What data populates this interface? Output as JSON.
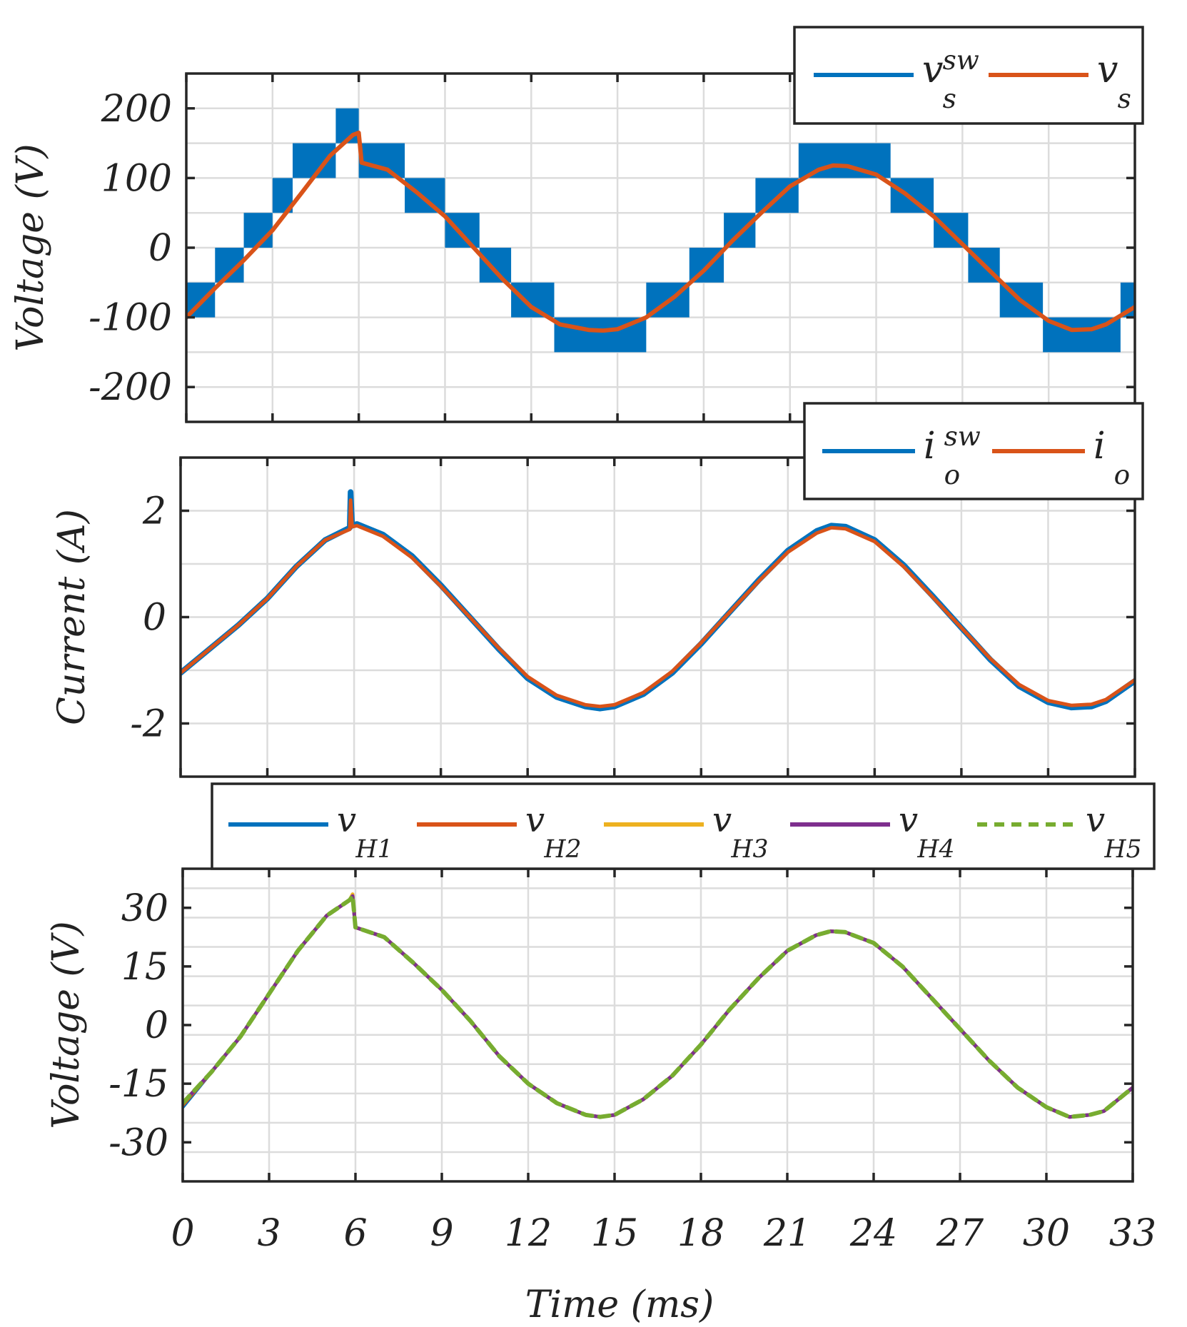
{
  "colors": {
    "blue": "#0072BD",
    "orange": "#D95319",
    "yellow": "#EDB120",
    "purple": "#7E2F8E",
    "green": "#77AC30",
    "grid": "#dcdcdc",
    "frame": "#262626"
  },
  "x_axis": {
    "title": "Time (ms)",
    "ticks": [
      "0",
      "3",
      "6",
      "9",
      "12",
      "15",
      "18",
      "21",
      "24",
      "27",
      "30",
      "33"
    ]
  },
  "chart_data": [
    {
      "type": "line",
      "panel": "top",
      "ylabel": "Voltage (V)",
      "xlabel": "",
      "xlim": [
        0,
        33
      ],
      "ylim": [
        -250,
        250
      ],
      "yticks": [
        "200",
        "100",
        "0",
        "-100",
        "-200"
      ],
      "grid": true,
      "legend_placement": "top-right",
      "series": [
        {
          "name": "v_s^sw",
          "legend_base": "v",
          "legend_sup": "sw",
          "legend_sub": "s",
          "style": "switching staircase band (PWM)",
          "levels": [
            {
              "t0": 0.0,
              "t1": 1.0,
              "lo": -100,
              "hi": -50
            },
            {
              "t0": 1.0,
              "t1": 2.0,
              "lo": -50,
              "hi": 0
            },
            {
              "t0": 2.0,
              "t1": 3.0,
              "lo": 0,
              "hi": 50
            },
            {
              "t0": 3.0,
              "t1": 3.7,
              "lo": 50,
              "hi": 100
            },
            {
              "t0": 3.7,
              "t1": 5.2,
              "lo": 100,
              "hi": 150
            },
            {
              "t0": 5.2,
              "t1": 6.0,
              "lo": 150,
              "hi": 200
            },
            {
              "t0": 6.0,
              "t1": 7.6,
              "lo": 100,
              "hi": 150
            },
            {
              "t0": 7.6,
              "t1": 9.0,
              "lo": 50,
              "hi": 100
            },
            {
              "t0": 9.0,
              "t1": 10.2,
              "lo": 0,
              "hi": 50
            },
            {
              "t0": 10.2,
              "t1": 11.3,
              "lo": -50,
              "hi": 0
            },
            {
              "t0": 11.3,
              "t1": 12.8,
              "lo": -100,
              "hi": -50
            },
            {
              "t0": 12.8,
              "t1": 16.0,
              "lo": -150,
              "hi": -100
            },
            {
              "t0": 16.0,
              "t1": 17.5,
              "lo": -100,
              "hi": -50
            },
            {
              "t0": 17.5,
              "t1": 18.7,
              "lo": -50,
              "hi": 0
            },
            {
              "t0": 18.7,
              "t1": 19.8,
              "lo": 0,
              "hi": 50
            },
            {
              "t0": 19.8,
              "t1": 21.3,
              "lo": 50,
              "hi": 100
            },
            {
              "t0": 21.3,
              "t1": 24.5,
              "lo": 100,
              "hi": 150
            },
            {
              "t0": 24.5,
              "t1": 26.0,
              "lo": 50,
              "hi": 100
            },
            {
              "t0": 26.0,
              "t1": 27.2,
              "lo": 0,
              "hi": 50
            },
            {
              "t0": 27.2,
              "t1": 28.3,
              "lo": -50,
              "hi": 0
            },
            {
              "t0": 28.3,
              "t1": 29.8,
              "lo": -100,
              "hi": -50
            },
            {
              "t0": 29.8,
              "t1": 32.5,
              "lo": -150,
              "hi": -100
            },
            {
              "t0": 32.5,
              "t1": 33.0,
              "lo": -100,
              "hi": -50
            }
          ]
        },
        {
          "name": "v_s",
          "legend_base": "v",
          "legend_sup": "",
          "legend_sub": "s",
          "x": [
            0,
            1,
            2,
            3,
            4,
            5,
            5.8,
            6.0,
            6.1,
            7,
            8,
            9,
            10,
            11,
            12,
            13,
            14,
            14.5,
            15,
            16,
            17,
            18,
            19,
            20,
            21,
            22,
            22.5,
            23,
            24,
            25,
            26,
            27,
            28,
            29,
            30,
            30.8,
            31.5,
            32,
            33
          ],
          "y": [
            -100,
            -58,
            -18,
            25,
            78,
            132,
            162,
            165,
            122,
            112,
            80,
            45,
            0,
            -45,
            -85,
            -110,
            -118,
            -119,
            -117,
            -100,
            -70,
            -33,
            10,
            50,
            88,
            112,
            118,
            117,
            105,
            78,
            45,
            5,
            -35,
            -75,
            -105,
            -118,
            -117,
            -110,
            -85
          ]
        }
      ]
    },
    {
      "type": "line",
      "panel": "middle",
      "ylabel": "Current (A)",
      "xlabel": "",
      "xlim": [
        0,
        33
      ],
      "ylim": [
        -3,
        3
      ],
      "yticks": [
        "2",
        "0",
        "-2"
      ],
      "grid": true,
      "legend_placement": "top-right",
      "series": [
        {
          "name": "i_o^sw",
          "legend_base": "i",
          "legend_sup": "sw",
          "legend_sub": "o",
          "x": [
            0,
            1,
            2,
            3,
            4,
            5,
            5.85,
            5.88,
            5.93,
            6.1,
            7,
            8,
            9,
            10,
            11,
            12,
            13,
            14,
            14.5,
            15,
            16,
            17,
            18,
            19,
            20,
            21,
            22,
            22.5,
            23,
            24,
            25,
            26,
            27,
            28,
            29,
            30,
            30.8,
            31.5,
            32,
            33
          ],
          "y": [
            -1.05,
            -0.6,
            -0.15,
            0.35,
            0.95,
            1.45,
            1.68,
            2.35,
            1.72,
            1.75,
            1.55,
            1.15,
            0.6,
            0.0,
            -0.6,
            -1.15,
            -1.5,
            -1.68,
            -1.72,
            -1.68,
            -1.45,
            -1.05,
            -0.5,
            0.1,
            0.7,
            1.25,
            1.62,
            1.72,
            1.7,
            1.45,
            0.98,
            0.4,
            -0.2,
            -0.8,
            -1.3,
            -1.6,
            -1.7,
            -1.68,
            -1.58,
            -1.2
          ]
        },
        {
          "name": "i_o",
          "legend_base": "i",
          "legend_sup": "",
          "legend_sub": "o",
          "x": [
            0,
            1,
            2,
            3,
            4,
            5,
            5.85,
            5.88,
            5.93,
            6.1,
            7,
            8,
            9,
            10,
            11,
            12,
            13,
            14,
            14.5,
            15,
            16,
            17,
            18,
            19,
            20,
            21,
            22,
            22.5,
            23,
            24,
            25,
            26,
            27,
            28,
            29,
            30,
            30.8,
            31.5,
            32,
            33
          ],
          "y": [
            -1.05,
            -0.6,
            -0.15,
            0.35,
            0.95,
            1.45,
            1.65,
            2.2,
            1.7,
            1.72,
            1.52,
            1.12,
            0.58,
            0.0,
            -0.58,
            -1.12,
            -1.47,
            -1.65,
            -1.68,
            -1.65,
            -1.42,
            -1.02,
            -0.48,
            0.1,
            0.68,
            1.22,
            1.58,
            1.68,
            1.66,
            1.42,
            0.95,
            0.38,
            -0.2,
            -0.78,
            -1.27,
            -1.57,
            -1.66,
            -1.64,
            -1.55,
            -1.18
          ]
        }
      ]
    },
    {
      "type": "line",
      "panel": "bottom",
      "ylabel": "Voltage (V)",
      "xlabel": "Time (ms)",
      "xlim": [
        0,
        33
      ],
      "ylim": [
        -40,
        40
      ],
      "yticks": [
        "30",
        "15",
        "0",
        "-15",
        "-30"
      ],
      "grid": true,
      "legend_placement": "top",
      "x": [
        0,
        1,
        2,
        3,
        4,
        5,
        5.8,
        5.9,
        6.0,
        7,
        8,
        9,
        10,
        11,
        12,
        13,
        14,
        14.5,
        15,
        16,
        17,
        18,
        19,
        20,
        21,
        22,
        22.5,
        23,
        24,
        25,
        26,
        27,
        28,
        29,
        30,
        30.8,
        31.5,
        32,
        33
      ],
      "series": [
        {
          "name": "v_H1",
          "legend_base": "v",
          "legend_sub": "H1",
          "dashed": false,
          "y": [
            -21,
            -12,
            -3,
            8,
            19,
            28,
            32,
            33,
            25,
            22.5,
            16,
            9,
            1,
            -8,
            -15,
            -20,
            -23,
            -23.5,
            -23,
            -19,
            -13,
            -5,
            4,
            12,
            19,
            23,
            24,
            23.8,
            21,
            15,
            7,
            -1,
            -9,
            -16,
            -21,
            -23.5,
            -23,
            -22,
            -16
          ]
        },
        {
          "name": "v_H2",
          "legend_base": "v",
          "legend_sub": "H2",
          "dashed": false,
          "y": [
            -20.5,
            -12,
            -3,
            8,
            19,
            28,
            32,
            33,
            25,
            22.5,
            16,
            9,
            1,
            -8,
            -15,
            -20,
            -23,
            -23.5,
            -23,
            -19,
            -13,
            -5,
            4,
            12,
            19,
            23,
            24,
            23.8,
            21,
            15,
            7,
            -1,
            -9,
            -16,
            -21,
            -23.5,
            -23,
            -22,
            -16
          ]
        },
        {
          "name": "v_H3",
          "legend_base": "v",
          "legend_sub": "H3",
          "dashed": false,
          "y": [
            -20,
            -12,
            -3,
            8,
            19,
            28,
            32,
            33.5,
            25,
            22.5,
            16,
            9,
            1,
            -8,
            -15,
            -20,
            -23,
            -23.5,
            -23,
            -19,
            -13,
            -5,
            4,
            12,
            19,
            23,
            24,
            23.8,
            21,
            15,
            7,
            -1,
            -9,
            -16,
            -21,
            -23.5,
            -23,
            -22,
            -16
          ]
        },
        {
          "name": "v_H4",
          "legend_base": "v",
          "legend_sub": "H4",
          "dashed": false,
          "y": [
            -20,
            -12,
            -3,
            8,
            19,
            28,
            32,
            33,
            25,
            22.5,
            16,
            9,
            1,
            -8,
            -15,
            -20,
            -23,
            -23.5,
            -23,
            -19,
            -13,
            -5,
            4,
            12,
            19,
            23,
            24,
            23.8,
            21,
            15,
            7,
            -1,
            -9,
            -16,
            -21,
            -23.5,
            -23,
            -22,
            -16
          ]
        },
        {
          "name": "v_H5",
          "legend_base": "v",
          "legend_sub": "H5",
          "dashed": true,
          "y": [
            -20,
            -12,
            -3,
            8,
            19,
            28,
            32,
            33,
            25,
            22.5,
            16,
            9,
            1,
            -8,
            -15,
            -20,
            -23,
            -23.5,
            -23,
            -19,
            -13,
            -5,
            4,
            12,
            19,
            23,
            24,
            23.8,
            21,
            15,
            7,
            -1,
            -9,
            -16,
            -21,
            -23.5,
            -23,
            -22,
            -16
          ]
        }
      ]
    }
  ]
}
